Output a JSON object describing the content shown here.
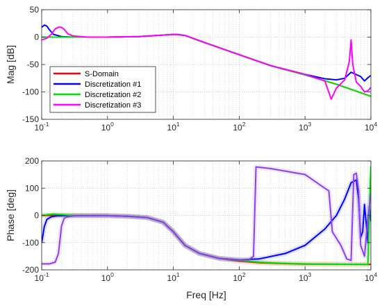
{
  "chart_data": [
    {
      "type": "line",
      "title": "",
      "xlabel": "",
      "ylabel": "Mag [dB]",
      "xscale": "log",
      "xlim": [
        0.1,
        10000
      ],
      "ylim": [
        -150,
        50
      ],
      "grid": true,
      "legend_position": "lower-left",
      "x_tick_labels": [
        {
          "base": "10",
          "exp": "-1"
        },
        {
          "base": "10",
          "exp": "0"
        },
        {
          "base": "10",
          "exp": "1"
        },
        {
          "base": "10",
          "exp": "2"
        },
        {
          "base": "10",
          "exp": "3"
        },
        {
          "base": "10",
          "exp": "4"
        }
      ],
      "y_ticks": [
        "50",
        "0",
        "-50",
        "-100",
        "-150"
      ],
      "y_tick_values": [
        50,
        0,
        -50,
        -100,
        -150
      ],
      "series": [
        {
          "name": "S-Domain",
          "color": "#ff0000",
          "x": [
            0.1,
            0.3,
            1,
            3,
            8,
            11,
            15,
            30,
            100,
            300,
            1000,
            3000,
            10000
          ],
          "y": [
            0,
            0,
            0,
            1,
            4,
            5,
            3,
            -10,
            -32,
            -52,
            -69,
            -86,
            -108
          ]
        },
        {
          "name": "Discretization #1",
          "color": "#0000ff",
          "x": [
            0.1,
            0.11,
            0.12,
            0.13,
            0.15,
            0.2,
            0.3,
            1,
            3,
            8,
            11,
            15,
            30,
            100,
            300,
            1000,
            2000,
            3000,
            4000,
            5000,
            7000,
            8000,
            9000,
            10000
          ],
          "y": [
            18,
            22,
            20,
            14,
            5,
            1,
            0,
            0,
            1,
            4,
            5,
            3,
            -10,
            -32,
            -52,
            -68,
            -76,
            -78,
            -75,
            -64,
            -72,
            -80,
            -74,
            -70
          ]
        },
        {
          "name": "Discretization #2",
          "color": "#00e000",
          "x": [
            0.1,
            0.3,
            1,
            3,
            8,
            11,
            15,
            30,
            100,
            300,
            1000,
            3000,
            10000
          ],
          "y": [
            0,
            0,
            0,
            1,
            4,
            5,
            3,
            -10,
            -32,
            -52,
            -69,
            -86,
            -108
          ]
        },
        {
          "name": "Discretization #3",
          "color": "#ff00ff",
          "x": [
            0.1,
            0.12,
            0.14,
            0.16,
            0.18,
            0.2,
            0.22,
            0.25,
            0.3,
            0.5,
            1,
            3,
            8,
            11,
            15,
            30,
            100,
            300,
            1000,
            2000,
            2500,
            3000,
            4000,
            4700,
            5000,
            5300,
            6000,
            7000,
            8000,
            9000,
            10000
          ],
          "y": [
            -5,
            -2,
            5,
            15,
            18,
            18,
            14,
            6,
            2,
            0,
            0,
            1,
            4,
            5,
            3,
            -10,
            -32,
            -52,
            -68,
            -80,
            -113,
            -93,
            -78,
            -45,
            -5,
            -50,
            -82,
            -90,
            -100,
            -98,
            -92
          ]
        }
      ]
    },
    {
      "type": "line",
      "title": "",
      "xlabel": "Freq [Hz]",
      "ylabel": "Phase [deg]",
      "xscale": "log",
      "xlim": [
        0.1,
        10000
      ],
      "ylim": [
        -200,
        200
      ],
      "grid": true,
      "x_tick_labels": [
        {
          "base": "10",
          "exp": "-1"
        },
        {
          "base": "10",
          "exp": "0"
        },
        {
          "base": "10",
          "exp": "1"
        },
        {
          "base": "10",
          "exp": "2"
        },
        {
          "base": "10",
          "exp": "3"
        },
        {
          "base": "10",
          "exp": "4"
        }
      ],
      "y_ticks": [
        "200",
        "100",
        "0",
        "-100",
        "-200"
      ],
      "y_tick_values": [
        200,
        100,
        0,
        -100,
        -200
      ],
      "series": [
        {
          "name": "S-Domain",
          "color": "#ff0000",
          "x": [
            0.1,
            0.3,
            1,
            2,
            4,
            7,
            10,
            15,
            25,
            50,
            100,
            200,
            500,
            1000,
            10000
          ],
          "y": [
            0,
            0,
            -1,
            -3,
            -8,
            -25,
            -60,
            -110,
            -140,
            -158,
            -168,
            -174,
            -177,
            -179,
            -180
          ]
        },
        {
          "name": "Discretization #1",
          "color": "#0000ff",
          "x": [
            0.1,
            0.11,
            0.12,
            0.14,
            0.17,
            0.25,
            0.5,
            1,
            2,
            4,
            7,
            10,
            15,
            25,
            50,
            100,
            200,
            500,
            1000,
            2000,
            3000,
            4000,
            5000,
            6000,
            6500,
            7000,
            7500,
            8000,
            9000,
            9500,
            10000
          ],
          "y": [
            -100,
            -40,
            -15,
            -5,
            -2,
            -1,
            -1,
            -1,
            -3,
            -8,
            -25,
            -60,
            -110,
            -140,
            -158,
            -163,
            -160,
            -140,
            -110,
            -50,
            0,
            60,
            120,
            130,
            60,
            -80,
            -60,
            40,
            -100,
            30,
            -20
          ]
        },
        {
          "name": "Discretization #2",
          "color": "#00e000",
          "x": [
            0.1,
            0.15,
            0.2,
            0.3,
            1,
            2,
            4,
            7,
            10,
            15,
            25,
            50,
            100,
            200,
            500,
            1000,
            5000,
            9000,
            9600,
            10000
          ],
          "y": [
            0,
            5,
            3,
            0,
            -1,
            -3,
            -8,
            -25,
            -60,
            -110,
            -140,
            -158,
            -165,
            -172,
            -176,
            -178,
            -180,
            -180,
            60,
            180
          ]
        },
        {
          "name": "Discretization #3",
          "color": "#8a3ff0",
          "x": [
            0.1,
            0.13,
            0.16,
            0.18,
            0.2,
            0.22,
            0.25,
            0.3,
            0.5,
            1,
            2,
            4,
            7,
            10,
            15,
            25,
            50,
            100,
            140,
            165,
            180,
            300,
            1000,
            2000,
            2300,
            2600,
            3500,
            4300,
            5000,
            5500,
            6000,
            6500,
            7000,
            8000,
            9000,
            10000
          ],
          "y": [
            -178,
            -178,
            -172,
            -140,
            -40,
            -10,
            -5,
            -2,
            -1,
            -1,
            -3,
            -8,
            -25,
            -60,
            -110,
            -140,
            -158,
            -163,
            -163,
            -150,
            178,
            172,
            150,
            100,
            90,
            -60,
            -110,
            -160,
            -165,
            150,
            155,
            90,
            -110,
            -150,
            -10,
            80
          ]
        }
      ]
    }
  ]
}
